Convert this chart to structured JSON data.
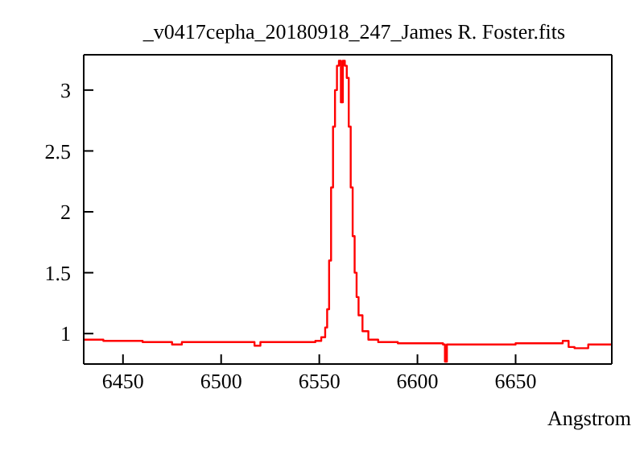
{
  "chart_data": {
    "type": "step",
    "title": "_v0417cepha_20180918_247_James R. Foster.fits",
    "xlabel": "Angstrom",
    "xlim": [
      6430,
      6699
    ],
    "ylim": [
      0.75,
      3.29
    ],
    "xticks": [
      6450,
      6500,
      6550,
      6600,
      6650
    ],
    "yticks": [
      1,
      1.5,
      2,
      2.5,
      3
    ],
    "grid": false,
    "legend": false,
    "x": [
      6430,
      6440,
      6450,
      6460,
      6470,
      6475,
      6480,
      6490,
      6500,
      6510,
      6517,
      6520,
      6530,
      6540,
      6548,
      6551,
      6553,
      6554,
      6555,
      6556,
      6557,
      6558,
      6559,
      6560,
      6561,
      6562,
      6563,
      6564,
      6565,
      6566,
      6567,
      6568,
      6569,
      6570,
      6572,
      6575,
      6580,
      6590,
      6600,
      6610,
      6613,
      6614,
      6615,
      6620,
      6630,
      6640,
      6650,
      6660,
      6670,
      6674,
      6677,
      6680,
      6684,
      6687,
      6690,
      6699
    ],
    "series": [
      {
        "color": "#ff0000",
        "values": [
          0.95,
          0.94,
          0.94,
          0.93,
          0.93,
          0.91,
          0.93,
          0.93,
          0.93,
          0.93,
          0.9,
          0.93,
          0.93,
          0.93,
          0.94,
          0.97,
          1.05,
          1.2,
          1.6,
          2.2,
          2.7,
          3.0,
          3.2,
          3.24,
          2.9,
          3.24,
          3.2,
          3.1,
          2.7,
          2.2,
          1.8,
          1.5,
          1.3,
          1.15,
          1.02,
          0.95,
          0.93,
          0.92,
          0.92,
          0.92,
          0.91,
          0.77,
          0.91,
          0.91,
          0.91,
          0.91,
          0.92,
          0.92,
          0.92,
          0.94,
          0.89,
          0.88,
          0.88,
          0.91,
          0.91,
          0.91
        ]
      }
    ]
  }
}
